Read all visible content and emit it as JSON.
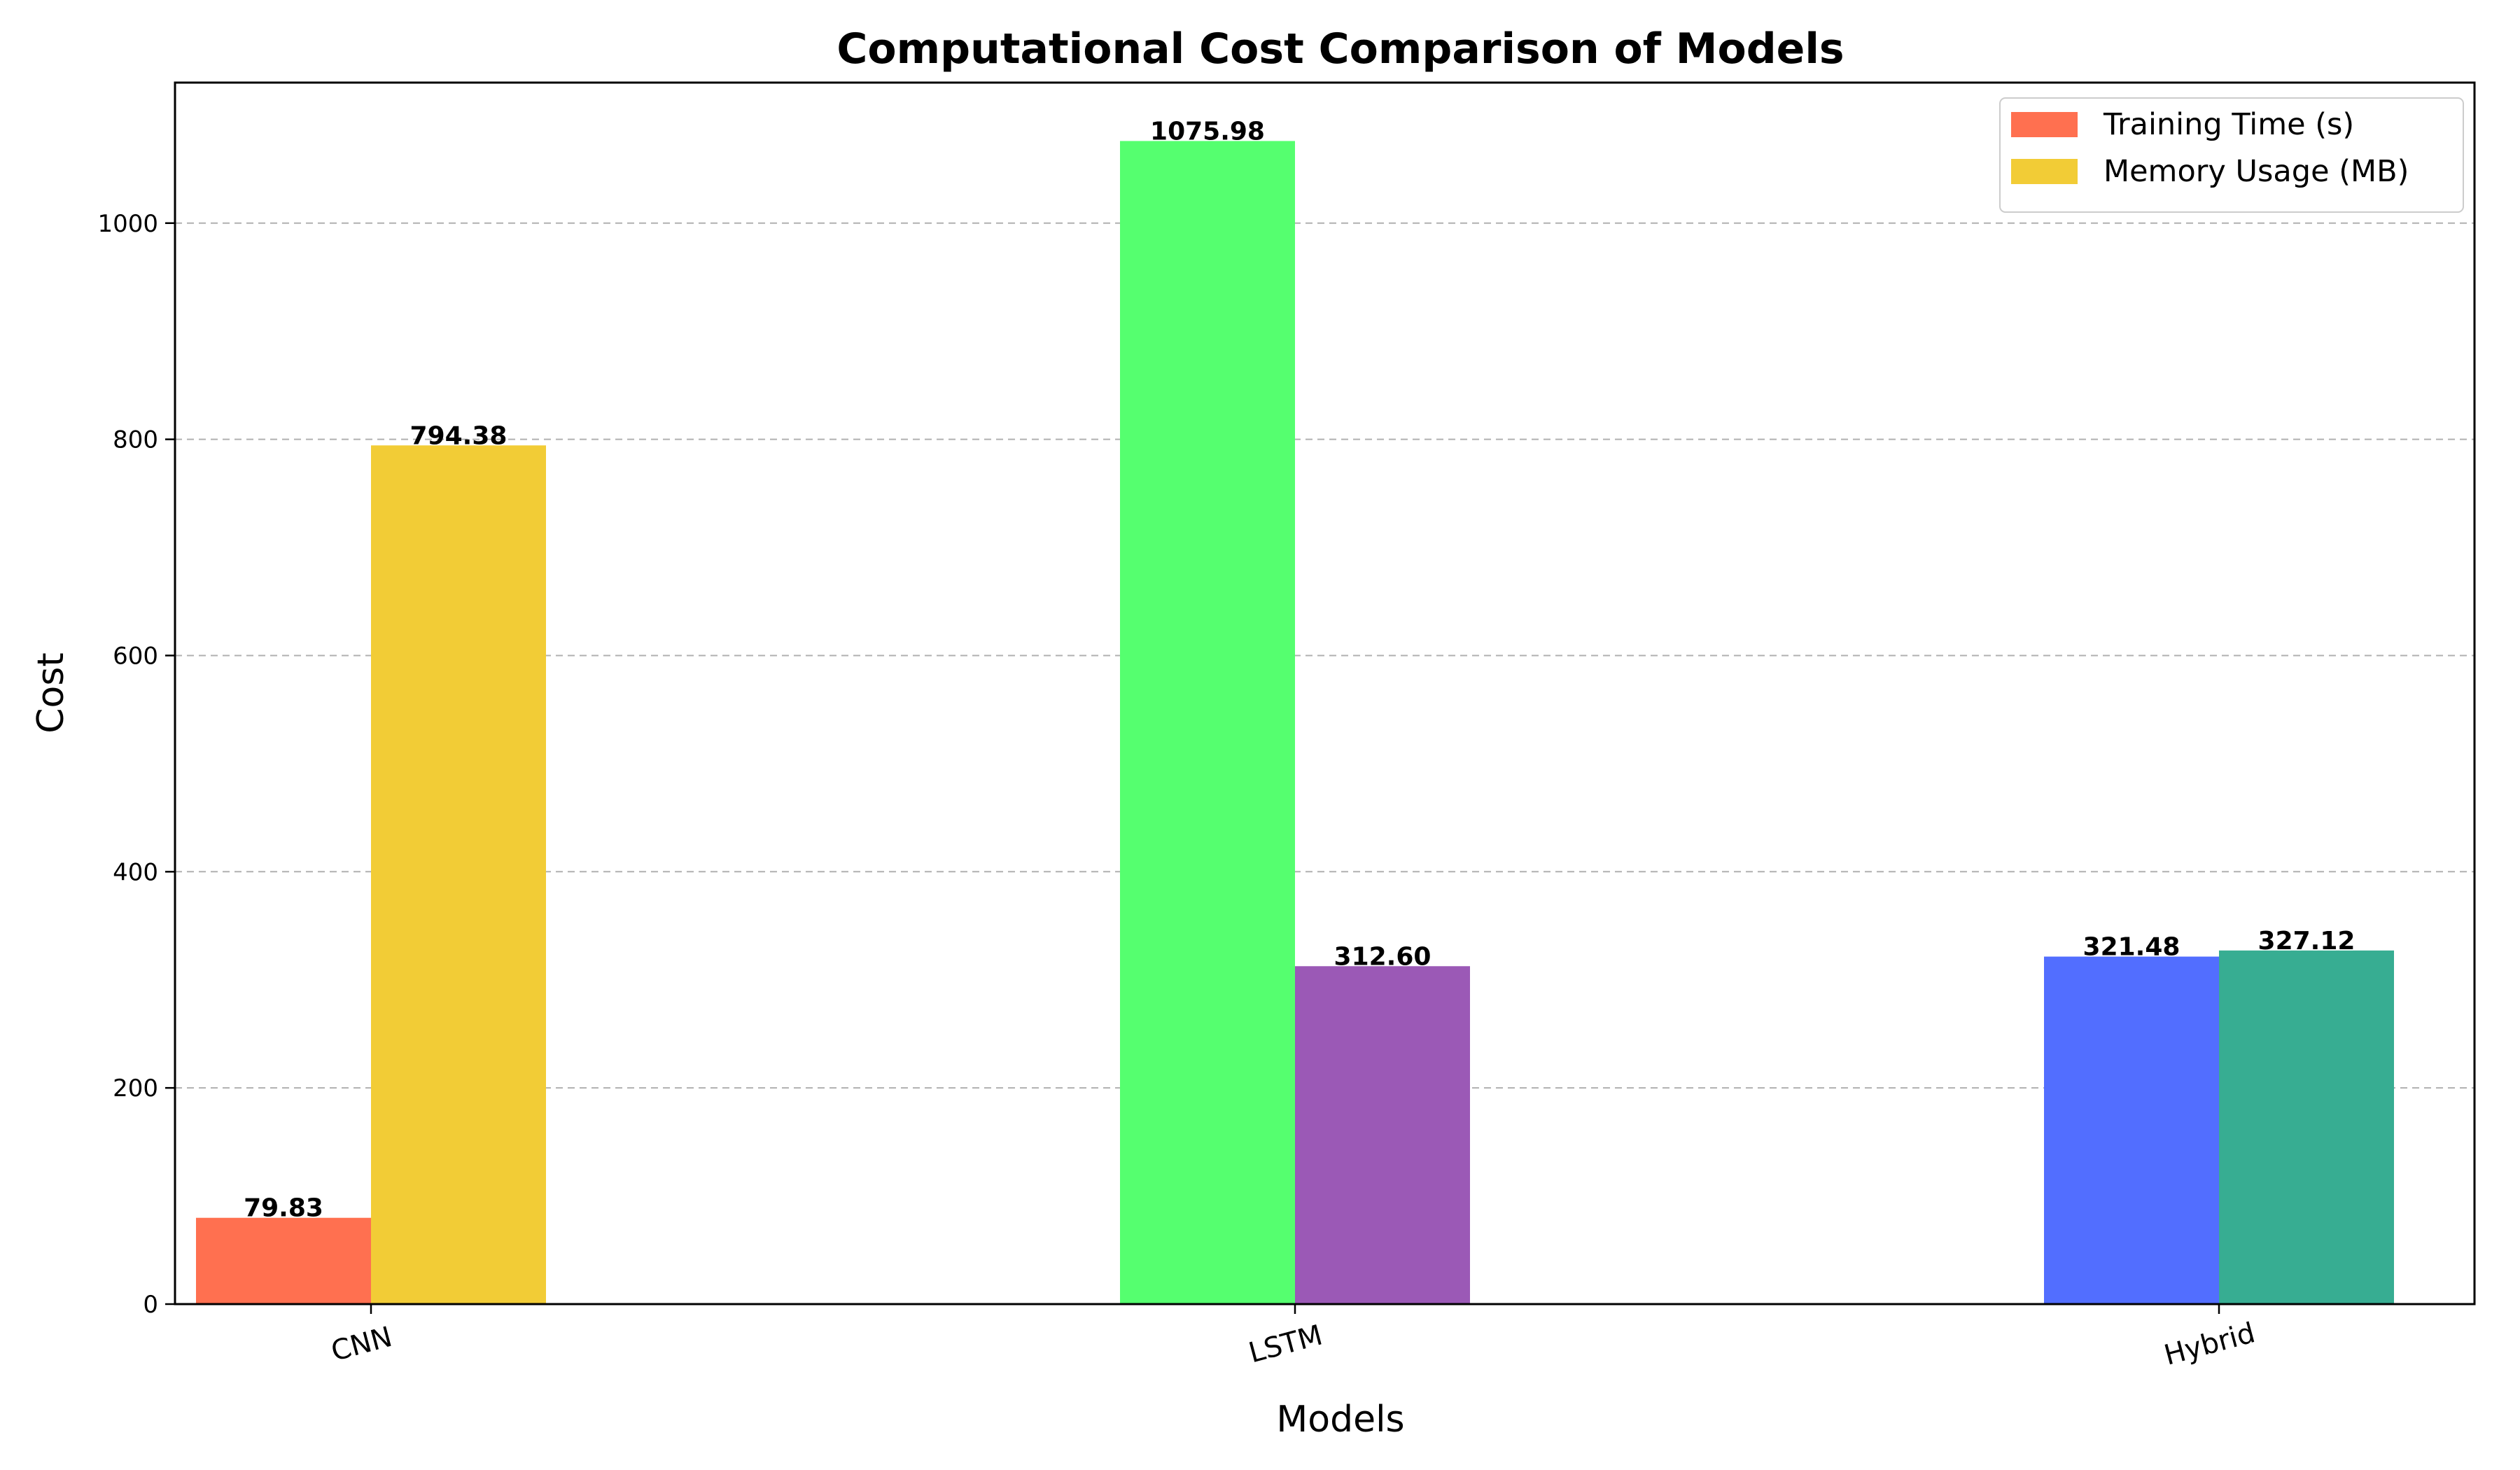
{
  "chart_data": {
    "type": "bar",
    "title": "Computational Cost Comparison of Models",
    "xlabel": "Models",
    "ylabel": "Cost",
    "categories": [
      "CNN",
      "LSTM",
      "Hybrid"
    ],
    "series": [
      {
        "name": "Training Time (s)",
        "values": [
          79.83,
          1075.98,
          321.48
        ],
        "value_labels": [
          "79.83",
          "1075.98",
          "321.48"
        ],
        "colors": [
          "#FF7050",
          "#55FF6F",
          "#526EFF"
        ]
      },
      {
        "name": "Memory Usage (MB)",
        "values": [
          794.38,
          312.6,
          327.12
        ],
        "value_labels": [
          "794.38",
          "312.60",
          "327.12"
        ],
        "colors": [
          "#F2CC36",
          "#9B59B6",
          "#37AD92"
        ]
      }
    ],
    "ylim": [
      0,
      1130
    ],
    "yticks": [
      0,
      200,
      400,
      600,
      800,
      1000
    ],
    "grid": "y dashed",
    "legend_position": "top-right",
    "legend_colors": [
      "#FF7050",
      "#F2CC36"
    ],
    "xtick_rotation_deg": 15
  }
}
